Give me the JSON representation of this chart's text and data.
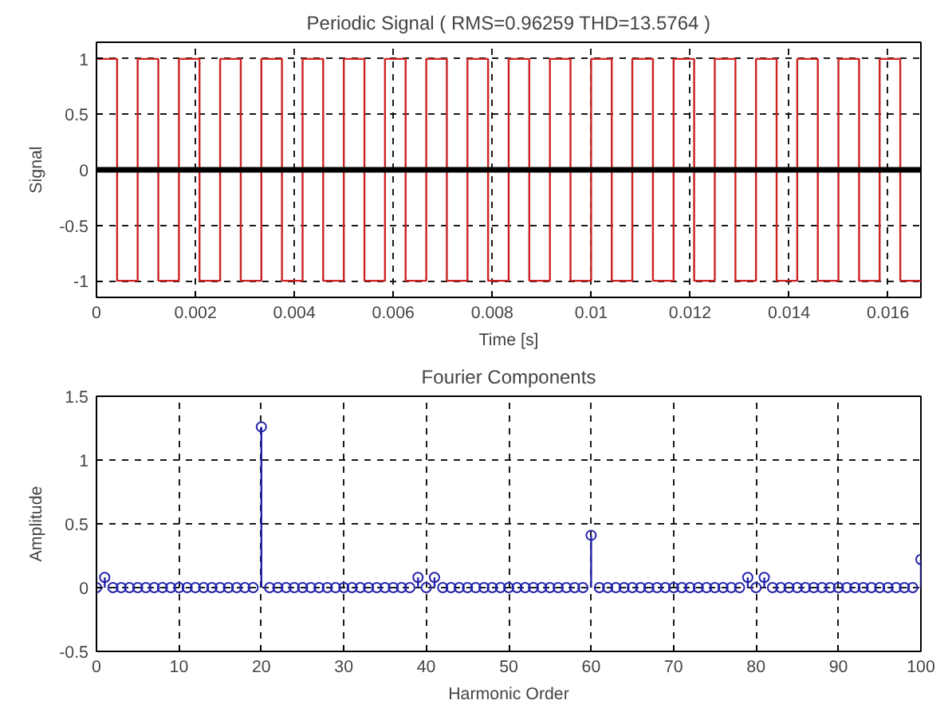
{
  "chart_data": [
    {
      "type": "step",
      "title": "Periodic Signal ( RMS=0.96259 THD=13.5764 )",
      "xlabel": "Time [s]",
      "ylabel": "Signal",
      "x": [
        0,
        0.000417,
        0.000833,
        0.00125,
        0.001667,
        0.002083,
        0.0025,
        0.002917,
        0.003333,
        0.00375,
        0.004167,
        0.004583,
        0.005,
        0.005417,
        0.005833,
        0.00625,
        0.006667,
        0.007083,
        0.0075,
        0.007917,
        0.008333,
        0.00875,
        0.009167,
        0.009583,
        0.01,
        0.010417,
        0.010833,
        0.01125,
        0.011667,
        0.012083,
        0.0125,
        0.012917,
        0.013333,
        0.01375,
        0.014167,
        0.014583,
        0.015,
        0.015417,
        0.015833,
        0.01625,
        0.016667
      ],
      "series": [
        {
          "color": "#cc2222",
          "values": [
            1,
            -1,
            1,
            -1,
            1,
            -1,
            1,
            -1,
            1,
            -1,
            1,
            -1,
            1,
            -1,
            1,
            -1,
            1,
            -1,
            1,
            -1,
            1,
            -1,
            1,
            -1,
            1,
            -1,
            1,
            -1,
            1,
            -1,
            1,
            -1,
            1,
            -1,
            1,
            -1,
            1,
            -1,
            1,
            -1,
            -1
          ]
        }
      ],
      "ref_lines": [
        {
          "axis": "y",
          "value": 0,
          "color": "#000000"
        }
      ],
      "xlim": [
        0,
        0.016667
      ],
      "ylim": [
        -1.15,
        1.15
      ],
      "xticks": [
        0,
        0.002,
        0.004,
        0.006,
        0.008,
        0.01,
        0.012,
        0.014,
        0.016
      ],
      "yticks": [
        -1,
        -0.5,
        0,
        0.5,
        1
      ],
      "grid": true,
      "line_style": "solid"
    },
    {
      "type": "lollipop",
      "title": "Fourier Components",
      "xlabel": "Harmonic Order",
      "ylabel": "Amplitude",
      "x": [
        0,
        1,
        2,
        3,
        4,
        5,
        6,
        7,
        8,
        9,
        10,
        11,
        12,
        13,
        14,
        15,
        16,
        17,
        18,
        19,
        20,
        21,
        22,
        23,
        24,
        25,
        26,
        27,
        28,
        29,
        30,
        31,
        32,
        33,
        34,
        35,
        36,
        37,
        38,
        39,
        40,
        41,
        42,
        43,
        44,
        45,
        46,
        47,
        48,
        49,
        50,
        51,
        52,
        53,
        54,
        55,
        56,
        57,
        58,
        59,
        60,
        61,
        62,
        63,
        64,
        65,
        66,
        67,
        68,
        69,
        70,
        71,
        72,
        73,
        74,
        75,
        76,
        77,
        78,
        79,
        80,
        81,
        82,
        83,
        84,
        85,
        86,
        87,
        88,
        89,
        90,
        91,
        92,
        93,
        94,
        95,
        96,
        97,
        98,
        99,
        100
      ],
      "series": [
        {
          "color": "#2222aa",
          "values": [
            0,
            0.08,
            0,
            0,
            0,
            0,
            0,
            0,
            0,
            0,
            0,
            0,
            0,
            0,
            0,
            0,
            0,
            0,
            0,
            0,
            1.26,
            0,
            0,
            0,
            0,
            0,
            0,
            0,
            0,
            0,
            0,
            0,
            0,
            0,
            0,
            0,
            0,
            0,
            0,
            0.08,
            0,
            0.08,
            0,
            0,
            0,
            0,
            0,
            0,
            0,
            0,
            0,
            0,
            0,
            0,
            0,
            0,
            0,
            0,
            0,
            0,
            0.41,
            0,
            0,
            0,
            0,
            0,
            0,
            0,
            0,
            0,
            0,
            0,
            0,
            0,
            0,
            0,
            0,
            0,
            0,
            0.08,
            0,
            0.08,
            0,
            0,
            0,
            0,
            0,
            0,
            0,
            0,
            0,
            0,
            0,
            0,
            0,
            0,
            0,
            0,
            0,
            0,
            0.22
          ]
        }
      ],
      "xlim": [
        0,
        100
      ],
      "ylim": [
        -0.5,
        1.5
      ],
      "xticks": [
        0,
        10,
        20,
        30,
        40,
        50,
        60,
        70,
        80,
        90,
        100
      ],
      "yticks": [
        -0.5,
        0,
        0.5,
        1,
        1.5
      ],
      "grid": true,
      "marker": "circle"
    }
  ]
}
